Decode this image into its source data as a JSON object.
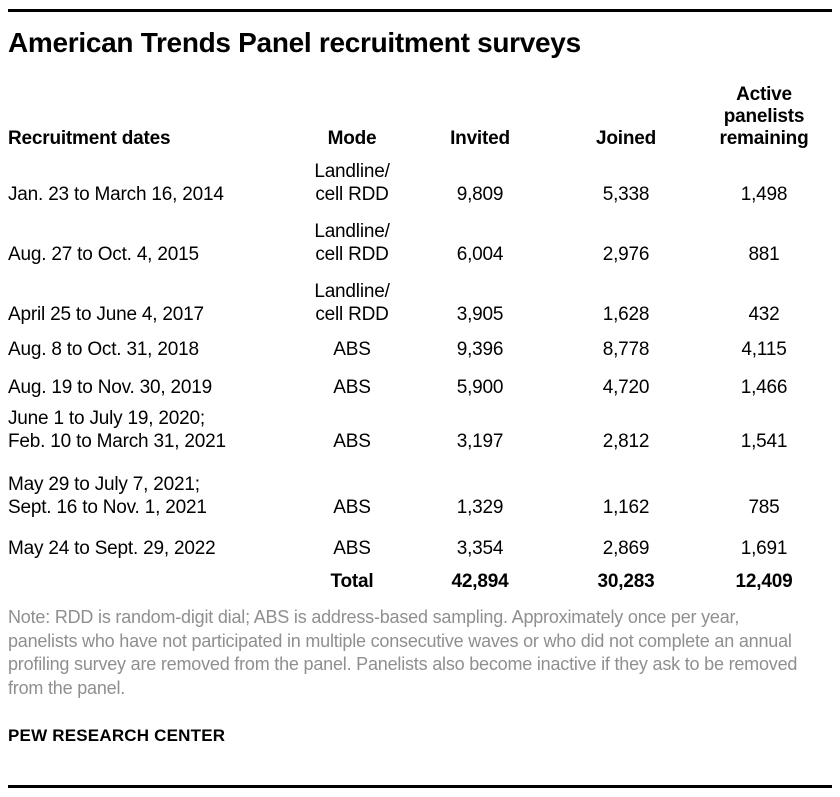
{
  "title": "American Trends Panel recruitment surveys",
  "table": {
    "headers": {
      "dates": "Recruitment dates",
      "mode": "Mode",
      "invited": "Invited",
      "joined": "Joined",
      "remaining_lines": [
        "Active",
        "panelists",
        "remaining"
      ]
    },
    "rows": [
      {
        "dates": [
          "Jan. 23 to March 16, 2014"
        ],
        "mode": [
          "Landline/",
          "cell RDD"
        ],
        "invited": "9,809",
        "joined": "5,338",
        "remaining": "1,498"
      },
      {
        "dates": [
          "Aug. 27 to Oct. 4, 2015"
        ],
        "mode": [
          "Landline/",
          "cell RDD"
        ],
        "invited": "6,004",
        "joined": "2,976",
        "remaining": "881"
      },
      {
        "dates": [
          "April 25 to June 4, 2017"
        ],
        "mode": [
          "Landline/",
          "cell RDD"
        ],
        "invited": "3,905",
        "joined": "1,628",
        "remaining": "432"
      },
      {
        "dates": [
          "Aug. 8 to Oct. 31, 2018"
        ],
        "mode": [
          "ABS"
        ],
        "invited": "9,396",
        "joined": "8,778",
        "remaining": "4,115"
      },
      {
        "dates": [
          "Aug. 19 to Nov. 30, 2019"
        ],
        "mode": [
          "ABS"
        ],
        "invited": "5,900",
        "joined": "4,720",
        "remaining": "1,466"
      },
      {
        "dates": [
          "June 1 to July 19, 2020;",
          "Feb. 10 to March 31, 2021"
        ],
        "mode": [
          "ABS"
        ],
        "invited": "3,197",
        "joined": "2,812",
        "remaining": "1,541"
      },
      {
        "dates": [
          "May 29 to July 7, 2021;",
          "Sept. 16 to Nov. 1, 2021"
        ],
        "mode": [
          "ABS"
        ],
        "invited": "1,329",
        "joined": "1,162",
        "remaining": "785"
      },
      {
        "dates": [
          "May 24 to Sept. 29, 2022"
        ],
        "mode": [
          "ABS"
        ],
        "invited": "3,354",
        "joined": "2,869",
        "remaining": "1,691"
      }
    ],
    "total": {
      "label": "Total",
      "invited": "42,894",
      "joined": "30,283",
      "remaining": "12,409"
    }
  },
  "note": "Note: RDD is random-digit dial; ABS is address-based sampling. Approximately once per year, panelists who have not participated in multiple consecutive waves or who did not complete an annual profiling survey are removed from the panel. Panelists also become inactive if they ask to be removed from the panel.",
  "footer": "PEW RESEARCH CENTER",
  "colors": {
    "text": "#000000",
    "note_text": "#8f8f8f",
    "rule": "#000000"
  },
  "chart_data": {
    "type": "table",
    "title": "American Trends Panel recruitment surveys",
    "columns": [
      "Recruitment dates",
      "Mode",
      "Invited",
      "Joined",
      "Active panelists remaining"
    ],
    "rows": [
      [
        "Jan. 23 to March 16, 2014",
        "Landline/cell RDD",
        9809,
        5338,
        1498
      ],
      [
        "Aug. 27 to Oct. 4, 2015",
        "Landline/cell RDD",
        6004,
        2976,
        881
      ],
      [
        "April 25 to June 4, 2017",
        "Landline/cell RDD",
        3905,
        1628,
        432
      ],
      [
        "Aug. 8 to Oct. 31, 2018",
        "ABS",
        9396,
        8778,
        4115
      ],
      [
        "Aug. 19 to Nov. 30, 2019",
        "ABS",
        5900,
        4720,
        1466
      ],
      [
        "June 1 to July 19, 2020; Feb. 10 to March 31, 2021",
        "ABS",
        3197,
        2812,
        1541
      ],
      [
        "May 29 to July 7, 2021; Sept. 16 to Nov. 1, 2021",
        "ABS",
        1329,
        1162,
        785
      ],
      [
        "May 24 to Sept. 29, 2022",
        "ABS",
        3354,
        2869,
        1691
      ]
    ],
    "total_row": [
      "",
      "Total",
      42894,
      30283,
      12409
    ],
    "note": "Note: RDD is random-digit dial; ABS is address-based sampling. Approximately once per year, panelists who have not participated in multiple consecutive waves or who did not complete an annual profiling survey are removed from the panel. Panelists also become inactive if they ask to be removed from the panel.",
    "source_label": "PEW RESEARCH CENTER"
  }
}
